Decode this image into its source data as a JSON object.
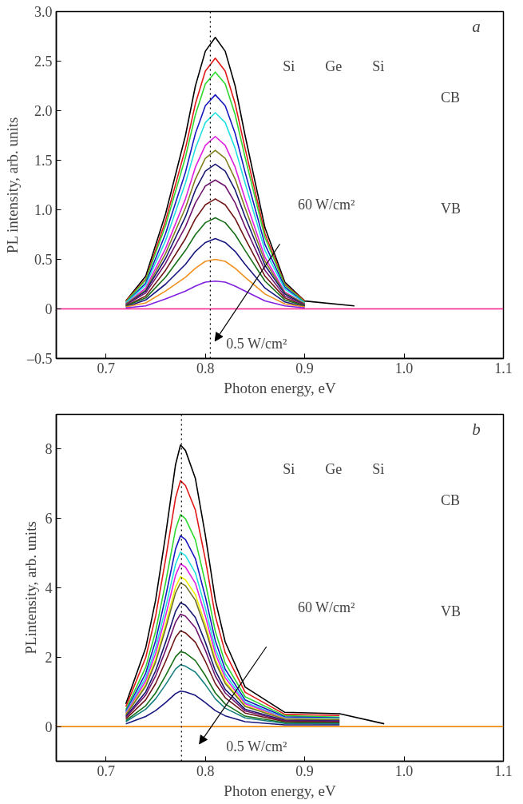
{
  "chart_data": [
    {
      "type": "line",
      "xlabel": "Photon energy, eV",
      "ylabel": "PL intensity, arb. units",
      "x": [
        0.65,
        0.7,
        0.72,
        0.74,
        0.76,
        0.78,
        0.79,
        0.8,
        0.81,
        0.82,
        0.83,
        0.84,
        0.86,
        0.88,
        0.9,
        0.95,
        1.0,
        1.1
      ],
      "xlim": [
        0.65,
        1.1
      ],
      "xticks": [
        0.7,
        0.8,
        0.9,
        {
          "value": 1.0,
          "label": "1.0"
        },
        1.1
      ],
      "ylim": [
        -0.5,
        3.0
      ],
      "yticks": [
        {
          "value": -0.5,
          "label": "–0.5"
        },
        0,
        0.5,
        {
          "value": 1.0,
          "label": "1.0"
        },
        1.5,
        {
          "value": 2.0,
          "label": "2.0"
        },
        2.5,
        {
          "value": 3.0,
          "label": "3.0"
        }
      ],
      "grid": false,
      "marker": "none",
      "line_style": "solid",
      "ref_lines": [
        {
          "axis": "x",
          "value": 0.805,
          "label": null,
          "color": "#000000",
          "line_style": "dotted"
        }
      ],
      "annotations": [
        "a",
        "Si",
        "Ge",
        "Si",
        "CB",
        "VB",
        "60 W/cm²",
        "0.5 W/cm²"
      ],
      "series": [
        {
          "color": "#000000",
          "values": [
            null,
            null,
            0.08,
            0.33,
            0.96,
            1.75,
            2.25,
            2.6,
            2.74,
            2.6,
            2.25,
            1.75,
            0.82,
            0.27,
            0.08,
            0.03,
            null,
            null
          ]
        },
        {
          "color": "#e01818",
          "values": [
            null,
            null,
            0.08,
            0.3,
            0.89,
            1.62,
            2.07,
            2.4,
            2.53,
            2.4,
            2.07,
            1.62,
            0.76,
            0.25,
            0.08,
            null,
            null,
            null
          ]
        },
        {
          "color": "#30d830",
          "values": [
            null,
            null,
            0.07,
            0.29,
            0.84,
            1.53,
            1.96,
            2.27,
            2.39,
            2.27,
            1.96,
            1.53,
            0.72,
            0.24,
            0.07,
            null,
            null,
            null
          ]
        },
        {
          "color": "#1818c0",
          "values": [
            null,
            null,
            0.06,
            0.26,
            0.76,
            1.38,
            1.77,
            2.05,
            2.16,
            2.05,
            1.77,
            1.38,
            0.65,
            0.22,
            0.06,
            null,
            null,
            null
          ]
        },
        {
          "color": "#20e0e0",
          "values": [
            null,
            null,
            0.06,
            0.24,
            0.69,
            1.27,
            1.62,
            1.88,
            1.98,
            1.88,
            1.62,
            1.27,
            0.59,
            0.2,
            0.06,
            null,
            null,
            null
          ]
        },
        {
          "color": "#e020e0",
          "values": [
            null,
            null,
            0.05,
            0.21,
            0.61,
            1.11,
            1.43,
            1.65,
            1.74,
            1.65,
            1.43,
            1.11,
            0.52,
            0.17,
            0.05,
            null,
            null,
            null
          ]
        },
        {
          "color": "#808020",
          "values": [
            null,
            null,
            0.05,
            0.19,
            0.56,
            1.02,
            1.31,
            1.52,
            1.6,
            1.52,
            1.31,
            1.02,
            0.48,
            0.16,
            0.05,
            null,
            null,
            null
          ]
        },
        {
          "color": "#181870",
          "values": [
            null,
            null,
            0.04,
            0.18,
            0.51,
            0.93,
            1.2,
            1.39,
            1.46,
            1.39,
            1.2,
            0.93,
            0.44,
            0.15,
            0.04,
            null,
            null,
            null
          ]
        },
        {
          "color": "#701870",
          "values": [
            null,
            null,
            0.04,
            0.16,
            0.46,
            0.83,
            1.07,
            1.24,
            1.3,
            1.24,
            1.07,
            0.83,
            0.39,
            0.13,
            0.04,
            null,
            null,
            null
          ]
        },
        {
          "color": "#701818",
          "values": [
            null,
            null,
            0.03,
            0.13,
            0.39,
            0.71,
            0.91,
            1.05,
            1.11,
            1.05,
            0.91,
            0.71,
            0.33,
            0.11,
            0.03,
            null,
            null,
            null
          ]
        },
        {
          "color": "#187018",
          "values": [
            null,
            null,
            0.03,
            0.11,
            0.32,
            0.59,
            0.75,
            0.87,
            0.92,
            0.87,
            0.75,
            0.59,
            0.28,
            0.09,
            0.03,
            null,
            null,
            null
          ]
        },
        {
          "color": "#181880",
          "values": [
            null,
            null,
            0.02,
            0.09,
            0.25,
            0.45,
            0.58,
            0.67,
            0.71,
            0.67,
            0.58,
            0.45,
            0.21,
            0.07,
            0.02,
            null,
            null,
            null
          ]
        },
        {
          "color": "#f09020",
          "values": [
            null,
            null,
            0.02,
            0.06,
            0.18,
            0.32,
            0.41,
            0.48,
            0.5,
            0.48,
            0.41,
            0.32,
            0.15,
            0.05,
            0.02,
            null,
            null,
            null
          ]
        },
        {
          "color": "#8020e0",
          "values": [
            null,
            null,
            0.01,
            0.03,
            0.1,
            0.18,
            0.23,
            0.27,
            0.28,
            0.27,
            0.23,
            0.18,
            0.08,
            0.03,
            0.01,
            null,
            null,
            null
          ]
        },
        {
          "color": "#ff1a8c",
          "values": [
            0,
            0,
            0,
            0,
            0,
            0,
            0,
            0,
            0,
            0,
            0,
            0,
            0,
            0,
            0,
            0,
            0,
            0
          ]
        }
      ]
    },
    {
      "type": "line",
      "xlabel": "Photon energy, eV",
      "ylabel": "PLintensity, arb. units",
      "x": [
        0.65,
        0.7,
        0.72,
        0.74,
        0.75,
        0.76,
        0.77,
        0.775,
        0.78,
        0.79,
        0.8,
        0.81,
        0.82,
        0.84,
        0.88,
        0.935,
        0.98,
        1.02,
        1.1
      ],
      "xlim": [
        0.65,
        1.1
      ],
      "xticks": [
        0.7,
        0.8,
        0.9,
        {
          "value": 1.0,
          "label": "1.0"
        },
        1.1
      ],
      "ylim": [
        -1,
        9
      ],
      "yticks": [
        0,
        2,
        4,
        6,
        8
      ],
      "grid": false,
      "marker": "none",
      "line_style": "solid",
      "ref_lines": [
        {
          "axis": "x",
          "value": 0.776,
          "label": null,
          "color": "#000000",
          "line_style": "dotted"
        }
      ],
      "annotations": [
        "b",
        "Si",
        "Ge",
        "Si",
        "CB",
        "VB",
        "60 W/cm²",
        "0.5 W/cm²"
      ],
      "series": [
        {
          "color": "#000000",
          "values": [
            null,
            null,
            0.65,
            2.27,
            3.65,
            5.52,
            7.55,
            8.12,
            7.96,
            7.15,
            5.52,
            3.65,
            2.44,
            1.14,
            0.41,
            0.37,
            0.08,
            null,
            null
          ]
        },
        {
          "color": "#e01818",
          "values": [
            null,
            null,
            0.57,
            1.99,
            3.19,
            4.82,
            6.59,
            7.09,
            6.95,
            6.24,
            4.82,
            3.19,
            2.13,
            0.99,
            0.35,
            0.32,
            null,
            null,
            null
          ]
        },
        {
          "color": "#30d830",
          "values": [
            null,
            null,
            0.49,
            1.71,
            2.75,
            4.15,
            5.68,
            6.11,
            5.99,
            5.38,
            4.15,
            2.75,
            1.83,
            0.86,
            0.31,
            0.27,
            null,
            null,
            null
          ]
        },
        {
          "color": "#1818c0",
          "values": [
            null,
            null,
            0.44,
            1.54,
            2.48,
            3.74,
            5.12,
            5.5,
            5.39,
            4.84,
            3.74,
            2.48,
            1.65,
            0.77,
            0.28,
            0.25,
            null,
            null,
            null
          ]
        },
        {
          "color": "#20e0e0",
          "values": [
            null,
            null,
            0.4,
            1.41,
            2.26,
            3.42,
            4.68,
            5.03,
            4.93,
            4.43,
            3.42,
            2.26,
            1.51,
            0.7,
            0.25,
            0.23,
            null,
            null,
            null
          ]
        },
        {
          "color": "#e020e0",
          "values": [
            null,
            null,
            0.38,
            1.31,
            2.11,
            3.19,
            4.36,
            4.69,
            4.6,
            4.13,
            3.19,
            2.11,
            1.41,
            0.66,
            0.23,
            0.21,
            null,
            null,
            null
          ]
        },
        {
          "color": "#f0f000",
          "values": [
            null,
            null,
            0.35,
            1.21,
            1.94,
            2.94,
            4.02,
            4.32,
            4.23,
            3.8,
            2.94,
            1.94,
            1.3,
            0.6,
            0.22,
            0.2,
            null,
            null,
            null
          ]
        },
        {
          "color": "#707030",
          "values": [
            null,
            null,
            0.33,
            1.16,
            1.86,
            2.82,
            3.85,
            4.14,
            4.06,
            3.64,
            2.82,
            1.86,
            1.24,
            0.58,
            0.21,
            0.19,
            null,
            null,
            null
          ]
        },
        {
          "color": "#181870",
          "values": [
            null,
            null,
            0.29,
            1.0,
            1.61,
            2.43,
            3.32,
            3.57,
            3.5,
            3.14,
            2.43,
            1.61,
            1.07,
            0.5,
            0.18,
            0.16,
            null,
            null,
            null
          ]
        },
        {
          "color": "#701870",
          "values": [
            null,
            null,
            0.26,
            0.91,
            1.46,
            2.2,
            3.01,
            3.24,
            3.18,
            2.85,
            2.2,
            1.46,
            0.97,
            0.45,
            0.16,
            0.15,
            null,
            null,
            null
          ]
        },
        {
          "color": "#701818",
          "values": [
            null,
            null,
            0.22,
            0.77,
            1.24,
            1.88,
            2.57,
            2.76,
            2.7,
            2.43,
            1.88,
            1.24,
            0.83,
            0.39,
            0.14,
            0.12,
            null,
            null,
            null
          ]
        },
        {
          "color": "#187018",
          "values": [
            null,
            null,
            0.17,
            0.6,
            0.97,
            1.47,
            2.01,
            2.16,
            2.12,
            1.9,
            1.47,
            0.97,
            0.65,
            0.3,
            0.11,
            0.1,
            null,
            null,
            null
          ]
        },
        {
          "color": "#188080",
          "values": [
            null,
            null,
            0.14,
            0.5,
            0.8,
            1.21,
            1.66,
            1.78,
            1.74,
            1.57,
            1.21,
            0.8,
            0.53,
            0.25,
            0.09,
            0.08,
            null,
            null,
            null
          ]
        },
        {
          "color": "#181880",
          "values": [
            null,
            null,
            0.08,
            0.29,
            0.46,
            0.69,
            0.95,
            1.02,
            1.0,
            0.9,
            0.69,
            0.46,
            0.31,
            0.14,
            0.05,
            0.05,
            null,
            null,
            null
          ]
        },
        {
          "color": "#f08c10",
          "values": [
            0,
            0,
            0,
            0,
            0,
            0,
            0,
            0,
            0,
            0,
            0,
            0,
            0,
            0,
            0,
            0,
            0,
            0,
            0
          ]
        }
      ]
    }
  ]
}
